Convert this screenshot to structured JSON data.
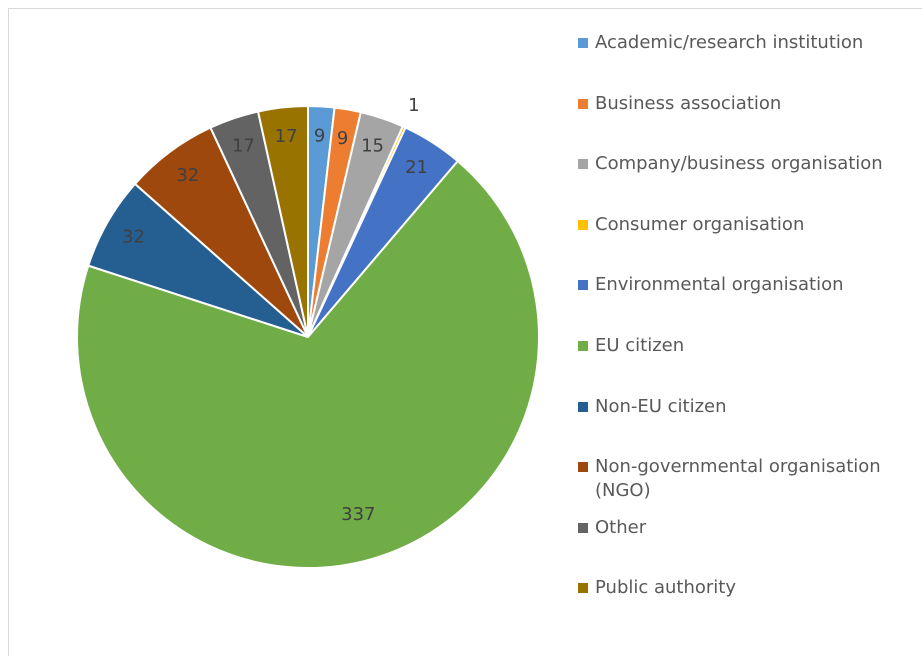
{
  "chart_data": {
    "type": "pie",
    "categories": [
      "Academic/research institution",
      "Business association",
      "Company/business organisation",
      "Consumer organisation",
      "Environmental organisation",
      "EU citizen",
      "Non-EU citizen",
      "Non-governmental organisation (NGO)",
      "Other",
      "Public authority"
    ],
    "values": [
      9,
      9,
      15,
      1,
      21,
      337,
      32,
      32,
      17,
      17
    ],
    "colors": [
      "#5b9bd5",
      "#ed7d31",
      "#a5a5a5",
      "#ffc000",
      "#4472c4",
      "#70ad47",
      "#255e91",
      "#9e480e",
      "#636363",
      "#997300"
    ],
    "legend": "right"
  }
}
